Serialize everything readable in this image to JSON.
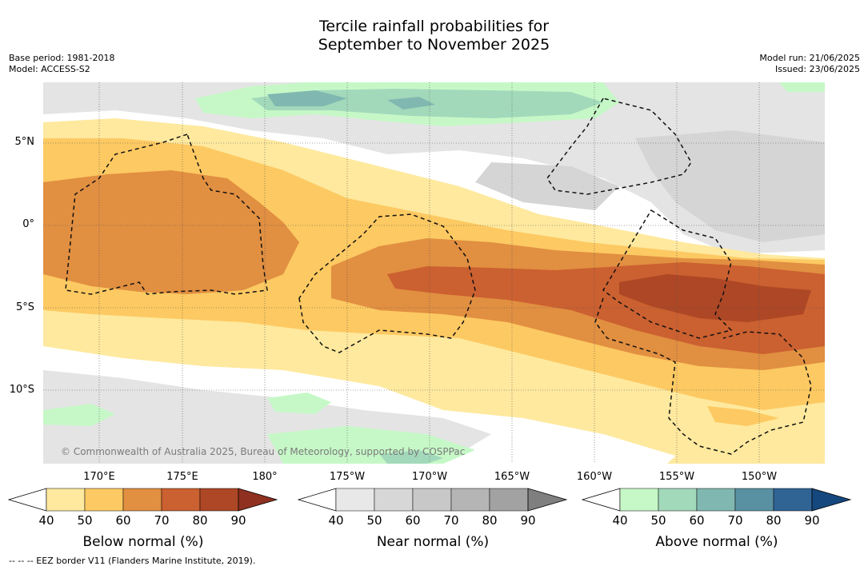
{
  "header": {
    "title_line1": "Tercile rainfall probabilities for",
    "title_line2": "September to November 2025",
    "base_period": "Base period: 1981-2018",
    "model": "Model: ACCESS-S2",
    "model_run": "Model run: 21/06/2025",
    "issued": "Issued: 23/06/2025"
  },
  "map": {
    "lat_labels": [
      "5°N",
      "0°",
      "5°S",
      "10°S"
    ],
    "lon_labels": [
      "170°E",
      "175°E",
      "180°",
      "175°W",
      "170°W",
      "165°W",
      "160°W",
      "155°W",
      "150°W"
    ],
    "copyright": "© Commonwealth of Australia 2025, Bureau of Meteorology, supported by COSPPac"
  },
  "legend": {
    "below": {
      "title": "Below normal (%)",
      "ticks": [
        "40",
        "50",
        "60",
        "70",
        "80",
        "90"
      ],
      "colors": [
        "#ffffff",
        "#fee99e",
        "#fdc962",
        "#e18f41",
        "#cb6030",
        "#ad4725",
        "#8f3020"
      ]
    },
    "near": {
      "title": "Near normal (%)",
      "ticks": [
        "40",
        "50",
        "60",
        "70",
        "80",
        "90"
      ],
      "colors": [
        "#ffffff",
        "#e8e8e8",
        "#d7d7d7",
        "#c8c8c8",
        "#b5b5b5",
        "#a2a2a2",
        "#7f7f7f"
      ]
    },
    "above": {
      "title": "Above normal (%)",
      "ticks": [
        "40",
        "50",
        "60",
        "70",
        "80",
        "90"
      ],
      "colors": [
        "#ffffff",
        "#c6f8c7",
        "#a3d9bb",
        "#80b8b1",
        "#5991a3",
        "#306495",
        "#15487e"
      ]
    }
  },
  "footnote": "-- -- -- EEZ border V11 (Flanders Marine Institute, 2019)."
}
